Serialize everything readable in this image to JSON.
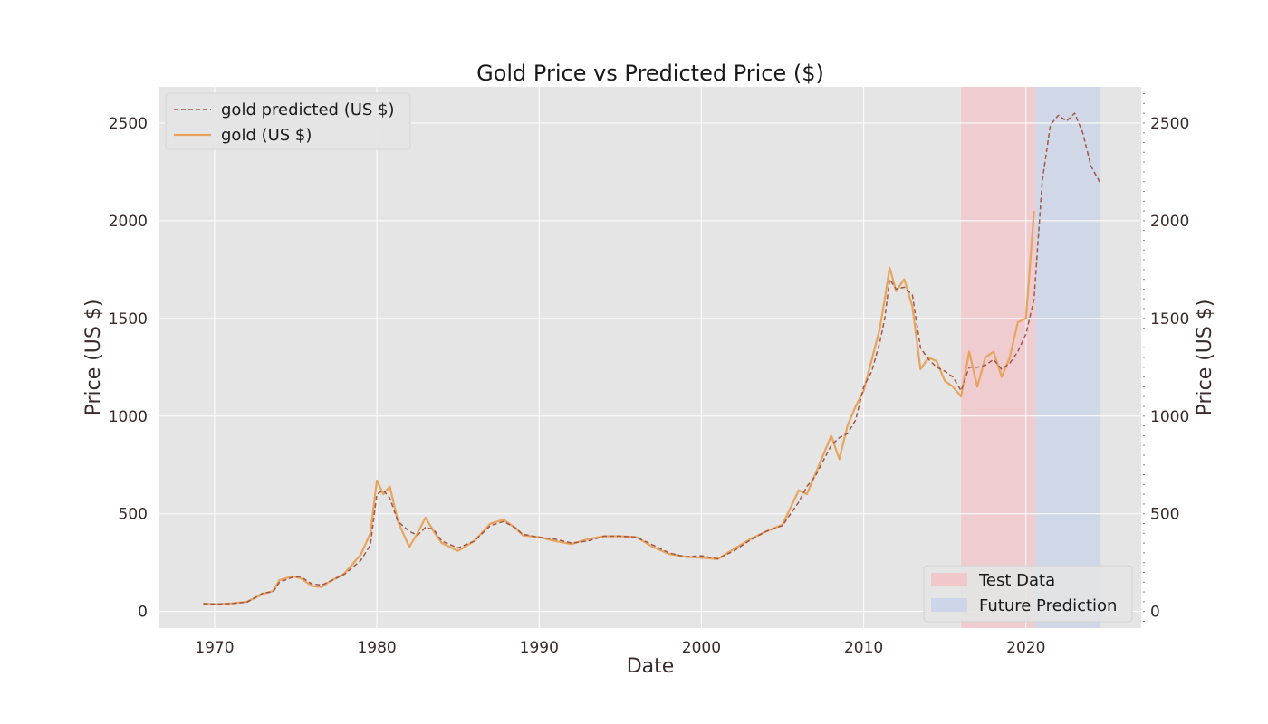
{
  "chart_data": {
    "type": "line",
    "title": "Gold Price vs Predicted Price ($)",
    "xlabel": "Date",
    "ylabel": "Price (US $)",
    "ylabel_right": "Price (US $)",
    "xlim": [
      1966.6,
      2027.1
    ],
    "ylim": [
      -85,
      2685
    ],
    "x_ticks": [
      1970,
      1980,
      1990,
      2000,
      2010,
      2020
    ],
    "y_ticks": [
      0,
      500,
      1000,
      1500,
      2000,
      2500
    ],
    "grid": true,
    "colors": {
      "background": "#e5e5e5",
      "grid": "#ffffff",
      "gold": "#e8a45c",
      "predicted": "#a0574a",
      "test_band": "#f0c8cc",
      "future_band": "#ccd6e8"
    },
    "shaded_regions": [
      {
        "name": "Test Data",
        "x_start": 2016.0,
        "x_end": 2020.6,
        "color": "#f0c8cc"
      },
      {
        "name": "Future Prediction",
        "x_start": 2020.6,
        "x_end": 2024.6,
        "color": "#ccd6e8"
      }
    ],
    "legend_upper": {
      "position": "upper-left",
      "entries": [
        "gold predicted (US $)",
        "gold (US $)"
      ]
    },
    "legend_lower": {
      "position": "lower-right",
      "entries": [
        "Test Data",
        "Future Prediction"
      ]
    },
    "series": [
      {
        "name": "gold predicted (US $)",
        "style": "dashed",
        "x": [
          1969.3,
          1970,
          1971,
          1972,
          1973,
          1973.6,
          1974,
          1974.8,
          1975.3,
          1976,
          1976.6,
          1977,
          1978,
          1979,
          1979.6,
          1980.0,
          1980.4,
          1980.8,
          1981.3,
          1982.0,
          1982.5,
          1983.0,
          1983.5,
          1984,
          1985,
          1986,
          1987,
          1987.8,
          1988.5,
          1989,
          1990,
          1991,
          1992,
          1993,
          1994,
          1995,
          1996,
          1997,
          1998,
          1999,
          2000,
          2001,
          2002,
          2003,
          2004,
          2005,
          2006,
          2006.5,
          2007,
          2008,
          2008.5,
          2009,
          2009.5,
          2010,
          2010.5,
          2011.0,
          2011.3,
          2011.6,
          2012,
          2012.5,
          2013,
          2013.5,
          2014,
          2014.5,
          2015,
          2015.5,
          2016,
          2016.5,
          2017,
          2017.5,
          2018,
          2018.5,
          2019,
          2019.5,
          2020,
          2020.5,
          2021.0,
          2021.5,
          2022.0,
          2022.5,
          2023.0,
          2023.5,
          2024.0,
          2024.6
        ],
        "y": [
          40,
          38,
          40,
          48,
          95,
          100,
          150,
          175,
          178,
          140,
          135,
          150,
          190,
          260,
          340,
          600,
          620,
          580,
          460,
          410,
          390,
          430,
          420,
          360,
          325,
          360,
          440,
          460,
          430,
          395,
          380,
          370,
          350,
          360,
          385,
          385,
          380,
          340,
          300,
          280,
          285,
          270,
          310,
          365,
          410,
          440,
          560,
          640,
          690,
          850,
          890,
          910,
          980,
          1150,
          1230,
          1380,
          1500,
          1700,
          1650,
          1660,
          1620,
          1350,
          1290,
          1250,
          1230,
          1200,
          1130,
          1250,
          1250,
          1260,
          1290,
          1240,
          1270,
          1330,
          1420,
          1600,
          2200,
          2490,
          2540,
          2510,
          2550,
          2450,
          2280,
          2190
        ]
      },
      {
        "name": "gold (US $)",
        "style": "solid",
        "x": [
          1969.3,
          1970,
          1971,
          1972,
          1973,
          1973.6,
          1974,
          1974.8,
          1975.3,
          1976,
          1976.6,
          1977,
          1978,
          1979,
          1979.6,
          1980.0,
          1980.4,
          1980.8,
          1981.3,
          1982.0,
          1982.5,
          1983.0,
          1983.5,
          1984,
          1985,
          1986,
          1987,
          1987.8,
          1988.5,
          1989,
          1990,
          1991,
          1992,
          1993,
          1994,
          1995,
          1996,
          1997,
          1998,
          1999,
          2000,
          2001,
          2002,
          2003,
          2004,
          2005,
          2006,
          2006.5,
          2007,
          2008,
          2008.5,
          2009,
          2009.5,
          2010,
          2010.5,
          2011.0,
          2011.3,
          2011.6,
          2012,
          2012.5,
          2013,
          2013.5,
          2014,
          2014.5,
          2015,
          2015.5,
          2016,
          2016.5,
          2017,
          2017.5,
          2018,
          2018.5,
          2019,
          2019.5,
          2020,
          2020.5
        ],
        "y": [
          40,
          36,
          41,
          50,
          90,
          105,
          160,
          180,
          170,
          130,
          125,
          148,
          195,
          290,
          400,
          670,
          600,
          640,
          460,
          330,
          400,
          480,
          410,
          350,
          310,
          360,
          450,
          470,
          430,
          390,
          380,
          360,
          345,
          370,
          385,
          385,
          380,
          330,
          295,
          280,
          275,
          268,
          320,
          370,
          410,
          445,
          620,
          600,
          700,
          900,
          780,
          950,
          1050,
          1130,
          1290,
          1450,
          1600,
          1760,
          1640,
          1700,
          1560,
          1240,
          1300,
          1280,
          1180,
          1150,
          1100,
          1330,
          1150,
          1300,
          1330,
          1200,
          1300,
          1480,
          1500,
          2050
        ]
      }
    ]
  }
}
